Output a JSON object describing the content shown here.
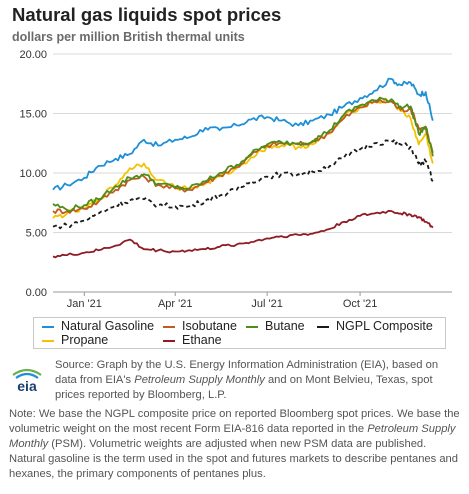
{
  "chart_data": {
    "type": "line",
    "title": "Natural gas liquids spot prices",
    "subtitle": "dollars per million British thermal units",
    "xlabel": "",
    "ylabel": "",
    "x_tick_labels": [
      "Jan '21",
      "Apr '21",
      "Jul '21",
      "Oct '21"
    ],
    "x_tick_dates": [
      "2021-01-01",
      "2021-04-01",
      "2021-07-01",
      "2021-10-01"
    ],
    "x_range": [
      "2020-12-01",
      "2021-12-31"
    ],
    "ylim": [
      0,
      20
    ],
    "y_ticks": [
      "0.00",
      "5.00",
      "10.00",
      "15.00",
      "20.00"
    ],
    "grid": "horizontal",
    "legend_position": "bottom",
    "series": [
      {
        "name": "Natural Gasoline",
        "color": "#1f8fd6",
        "style": "solid",
        "x": [
          "2020-12-01",
          "2020-12-15",
          "2021-01-01",
          "2021-01-15",
          "2021-02-01",
          "2021-02-15",
          "2021-03-01",
          "2021-03-15",
          "2021-04-01",
          "2021-04-15",
          "2021-05-01",
          "2021-05-15",
          "2021-06-01",
          "2021-06-15",
          "2021-07-01",
          "2021-07-15",
          "2021-08-01",
          "2021-08-15",
          "2021-09-01",
          "2021-09-15",
          "2021-10-01",
          "2021-10-15",
          "2021-11-01",
          "2021-11-10",
          "2021-11-20",
          "2021-11-28",
          "2021-12-05",
          "2021-12-12"
        ],
        "values": [
          8.6,
          9.0,
          9.6,
          10.6,
          11.2,
          11.6,
          12.8,
          12.3,
          12.8,
          13.0,
          13.8,
          13.6,
          14.0,
          14.5,
          14.7,
          14.4,
          14.0,
          14.4,
          14.9,
          15.6,
          16.3,
          16.9,
          17.9,
          17.4,
          17.6,
          16.6,
          16.8,
          14.4
        ]
      },
      {
        "name": "Isobutane",
        "color": "#c35a1e",
        "style": "solid",
        "x": [
          "2020-12-01",
          "2020-12-15",
          "2021-01-01",
          "2021-01-15",
          "2021-02-01",
          "2021-02-15",
          "2021-03-01",
          "2021-03-15",
          "2021-04-01",
          "2021-04-15",
          "2021-05-01",
          "2021-05-15",
          "2021-06-01",
          "2021-06-15",
          "2021-07-01",
          "2021-07-15",
          "2021-08-01",
          "2021-08-15",
          "2021-09-01",
          "2021-09-15",
          "2021-10-01",
          "2021-10-15",
          "2021-11-01",
          "2021-11-10",
          "2021-11-20",
          "2021-11-28",
          "2021-12-05",
          "2021-12-12"
        ],
        "values": [
          6.8,
          6.8,
          7.0,
          7.6,
          8.6,
          9.4,
          9.7,
          9.0,
          8.7,
          8.6,
          9.2,
          9.8,
          10.5,
          11.5,
          12.3,
          12.5,
          12.4,
          12.6,
          13.4,
          14.6,
          15.5,
          16.0,
          16.0,
          15.3,
          15.4,
          13.8,
          13.8,
          11.7
        ]
      },
      {
        "name": "Butane",
        "color": "#4d8d1a",
        "style": "solid",
        "x": [
          "2020-12-01",
          "2020-12-15",
          "2021-01-01",
          "2021-01-15",
          "2021-02-01",
          "2021-02-15",
          "2021-03-01",
          "2021-03-15",
          "2021-04-01",
          "2021-04-15",
          "2021-05-01",
          "2021-05-15",
          "2021-06-01",
          "2021-06-15",
          "2021-07-01",
          "2021-07-15",
          "2021-08-01",
          "2021-08-15",
          "2021-09-01",
          "2021-09-15",
          "2021-10-01",
          "2021-10-15",
          "2021-11-01",
          "2021-11-10",
          "2021-11-20",
          "2021-11-28",
          "2021-12-05",
          "2021-12-12"
        ],
        "values": [
          7.4,
          6.9,
          7.3,
          7.8,
          8.9,
          9.6,
          9.9,
          9.1,
          8.8,
          8.7,
          9.3,
          10.0,
          10.7,
          11.6,
          12.4,
          12.6,
          12.5,
          12.7,
          13.6,
          14.9,
          15.7,
          16.1,
          16.2,
          15.6,
          15.6,
          13.3,
          13.9,
          11.4
        ]
      },
      {
        "name": "NGPL Composite",
        "color": "#1a1a1a",
        "style": "dashed",
        "x": [
          "2020-12-01",
          "2020-12-15",
          "2021-01-01",
          "2021-01-15",
          "2021-02-01",
          "2021-02-15",
          "2021-03-01",
          "2021-03-15",
          "2021-04-01",
          "2021-04-15",
          "2021-05-01",
          "2021-05-15",
          "2021-06-01",
          "2021-06-15",
          "2021-07-01",
          "2021-07-15",
          "2021-08-01",
          "2021-08-15",
          "2021-09-01",
          "2021-09-15",
          "2021-10-01",
          "2021-10-15",
          "2021-11-01",
          "2021-11-10",
          "2021-11-20",
          "2021-11-28",
          "2021-12-05",
          "2021-12-12"
        ],
        "values": [
          5.5,
          5.6,
          6.0,
          6.6,
          7.3,
          7.7,
          7.8,
          7.3,
          7.2,
          7.2,
          7.7,
          8.1,
          8.6,
          9.3,
          9.7,
          9.9,
          9.9,
          10.1,
          10.6,
          11.3,
          12.0,
          12.5,
          12.7,
          12.4,
          12.2,
          10.8,
          11.0,
          9.3
        ]
      },
      {
        "name": "Propane",
        "color": "#f2c200",
        "style": "solid",
        "x": [
          "2020-12-01",
          "2020-12-15",
          "2021-01-01",
          "2021-01-15",
          "2021-02-01",
          "2021-02-15",
          "2021-03-01",
          "2021-03-15",
          "2021-04-01",
          "2021-04-15",
          "2021-05-01",
          "2021-05-15",
          "2021-06-01",
          "2021-06-15",
          "2021-07-01",
          "2021-07-15",
          "2021-08-01",
          "2021-08-15",
          "2021-09-01",
          "2021-09-15",
          "2021-10-01",
          "2021-10-15",
          "2021-11-01",
          "2021-11-10",
          "2021-11-20",
          "2021-11-28",
          "2021-12-05",
          "2021-12-12"
        ],
        "values": [
          6.2,
          6.6,
          7.0,
          7.8,
          9.0,
          10.4,
          10.8,
          9.4,
          8.8,
          8.7,
          9.1,
          9.7,
          10.4,
          11.3,
          12.2,
          12.3,
          12.2,
          12.4,
          13.3,
          14.7,
          15.6,
          16.0,
          16.1,
          15.2,
          14.6,
          12.4,
          13.3,
          10.8
        ]
      },
      {
        "name": "Ethane",
        "color": "#8f1c24",
        "style": "solid",
        "x": [
          "2020-12-01",
          "2020-12-15",
          "2021-01-01",
          "2021-01-15",
          "2021-02-01",
          "2021-02-15",
          "2021-03-01",
          "2021-03-15",
          "2021-04-01",
          "2021-04-15",
          "2021-05-01",
          "2021-05-15",
          "2021-06-01",
          "2021-06-15",
          "2021-07-01",
          "2021-07-15",
          "2021-08-01",
          "2021-08-15",
          "2021-09-01",
          "2021-09-15",
          "2021-10-01",
          "2021-10-15",
          "2021-11-01",
          "2021-11-10",
          "2021-11-20",
          "2021-11-28",
          "2021-12-05",
          "2021-12-12"
        ],
        "values": [
          3.0,
          3.1,
          3.3,
          3.5,
          3.9,
          4.4,
          3.6,
          3.5,
          3.4,
          3.5,
          3.6,
          3.8,
          4.0,
          4.2,
          4.5,
          4.7,
          4.8,
          4.9,
          5.3,
          5.9,
          6.4,
          6.6,
          6.8,
          6.6,
          6.5,
          6.3,
          5.9,
          5.4
        ]
      }
    ]
  },
  "legend_rows": [
    [
      {
        "label": "Natural Gasoline",
        "color": "#1f8fd6",
        "style": "solid"
      },
      {
        "label": "Isobutane",
        "color": "#c35a1e",
        "style": "solid"
      },
      {
        "label": "Butane",
        "color": "#4d8d1a",
        "style": "solid"
      },
      {
        "label": "NGPL Composite",
        "color": "#1a1a1a",
        "style": "dashed"
      }
    ],
    [
      {
        "label": "Propane",
        "color": "#f2c200",
        "style": "solid"
      },
      {
        "label": "Ethane",
        "color": "#8f1c24",
        "style": "solid"
      }
    ]
  ],
  "logo": {
    "text": "eia"
  },
  "source": {
    "line_prefix": "Source: Graph by the U.S. Energy Information Administration (EIA), based on data from EIA's ",
    "publication": "Petroleum Supply Monthly",
    "line_suffix": " and on Mont Belvieu, Texas, spot prices reported by Bloomberg, L.P."
  },
  "note": {
    "part1": "Note: We base the NGPL composite price on reported Bloomberg spot prices. We base the volumetric weight on the most recent Form EIA-816 data reported in the ",
    "publication": "Petroleum Supply Monthly",
    "part2": " (PSM). Volumetric weights are adjusted when new PSM data are published. Natural gasoline is the term used in the spot and futures markets to describe pentanes and hexanes, the primary components of pentanes plus."
  },
  "colors": {
    "grid": "#d9d9d9",
    "axis_text": "#333333",
    "legend_border": "#c9c9c9"
  }
}
